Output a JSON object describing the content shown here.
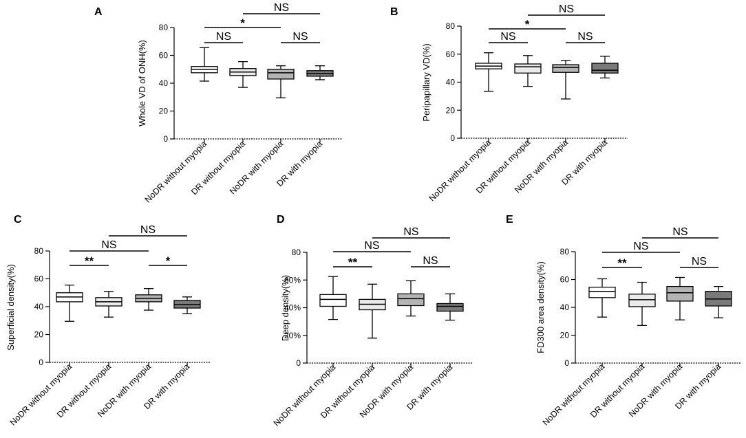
{
  "figure": {
    "categories": [
      "NoDR without myopia",
      "DR without myopia",
      "NoDR with myopia",
      "DR with myopia"
    ],
    "box_colors": [
      "#ffffff",
      "#ebebeb",
      "#b4b4b4",
      "#7a7a7a"
    ]
  },
  "chart_data": [
    {
      "id": "A",
      "type": "box",
      "letter": "A",
      "ylabel": "Whole VD of ONH(%)",
      "ylim": [
        0,
        80
      ],
      "yticks": [
        0,
        20,
        40,
        60,
        80
      ],
      "yticklabels": [
        "0",
        "20",
        "40",
        "60",
        "80"
      ],
      "boxes": [
        {
          "min": 41.5,
          "q1": 47.5,
          "median": 50.0,
          "q3": 52.0,
          "max": 65.5
        },
        {
          "min": 37.0,
          "q1": 45.5,
          "median": 48.0,
          "q3": 50.5,
          "max": 55.5
        },
        {
          "min": 29.5,
          "q1": 43.0,
          "median": 47.5,
          "q3": 50.0,
          "max": 52.5
        },
        {
          "min": 42.5,
          "q1": 45.0,
          "median": 47.0,
          "q3": 49.0,
          "max": 52.5
        }
      ],
      "comparisons": [
        {
          "from": 1,
          "to": 3,
          "label": "NS",
          "level": 3
        },
        {
          "from": 0,
          "to": 2,
          "label": "*",
          "level": 2
        },
        {
          "from": 0,
          "to": 1,
          "label": "NS",
          "level": 1
        },
        {
          "from": 2,
          "to": 3,
          "label": "NS",
          "level": 1
        }
      ]
    },
    {
      "id": "B",
      "type": "box",
      "letter": "B",
      "ylabel": "Peripapillary VD(%)",
      "ylim": [
        0,
        80
      ],
      "yticks": [
        0,
        20,
        40,
        60,
        80
      ],
      "yticklabels": [
        "0",
        "20",
        "40",
        "60",
        "80"
      ],
      "boxes": [
        {
          "min": 33.5,
          "q1": 49.5,
          "median": 51.5,
          "q3": 53.5,
          "max": 61.0
        },
        {
          "min": 37.0,
          "q1": 46.5,
          "median": 51.0,
          "q3": 53.0,
          "max": 59.0
        },
        {
          "min": 28.0,
          "q1": 47.0,
          "median": 50.5,
          "q3": 52.5,
          "max": 55.5
        },
        {
          "min": 43.0,
          "q1": 46.5,
          "median": 48.5,
          "q3": 53.5,
          "max": 58.5
        }
      ],
      "comparisons": [
        {
          "from": 1,
          "to": 3,
          "label": "NS",
          "level": 3
        },
        {
          "from": 0,
          "to": 2,
          "label": "*",
          "level": 2
        },
        {
          "from": 0,
          "to": 1,
          "label": "NS",
          "level": 1
        },
        {
          "from": 2,
          "to": 3,
          "label": "NS",
          "level": 1
        }
      ]
    },
    {
      "id": "C",
      "type": "box",
      "letter": "C",
      "ylabel": "Superficial density(%)",
      "ylim": [
        0,
        80
      ],
      "yticks": [
        0,
        20,
        40,
        60,
        80
      ],
      "yticklabels": [
        "0",
        "20",
        "40",
        "60",
        "80"
      ],
      "boxes": [
        {
          "min": 29.5,
          "q1": 43.5,
          "median": 47.0,
          "q3": 50.0,
          "max": 55.5
        },
        {
          "min": 32.5,
          "q1": 40.5,
          "median": 43.5,
          "q3": 46.5,
          "max": 51.0
        },
        {
          "min": 37.5,
          "q1": 43.5,
          "median": 46.0,
          "q3": 48.5,
          "max": 53.0
        },
        {
          "min": 35.0,
          "q1": 39.0,
          "median": 41.5,
          "q3": 44.5,
          "max": 47.0
        }
      ],
      "comparisons": [
        {
          "from": 1,
          "to": 3,
          "label": "NS",
          "level": 3
        },
        {
          "from": 0,
          "to": 2,
          "label": "NS",
          "level": 2
        },
        {
          "from": 0,
          "to": 1,
          "label": "**",
          "level": 1
        },
        {
          "from": 2,
          "to": 3,
          "label": "*",
          "level": 1
        }
      ]
    },
    {
      "id": "D",
      "type": "box",
      "letter": "D",
      "ylabel": "Deep density(%)",
      "ylim": [
        0,
        80
      ],
      "yticks": [
        0,
        20,
        40,
        60,
        80
      ],
      "yticklabels": [
        "0",
        "20%",
        "40%",
        "60%",
        "80"
      ],
      "boxes": [
        {
          "min": 31.5,
          "q1": 41.0,
          "median": 46.0,
          "q3": 49.5,
          "max": 62.5
        },
        {
          "min": 18.0,
          "q1": 38.5,
          "median": 42.5,
          "q3": 46.0,
          "max": 57.0
        },
        {
          "min": 34.0,
          "q1": 41.5,
          "median": 46.5,
          "q3": 50.0,
          "max": 59.5
        },
        {
          "min": 31.0,
          "q1": 37.5,
          "median": 41.0,
          "q3": 43.0,
          "max": 50.0
        }
      ],
      "comparisons": [
        {
          "from": 1,
          "to": 3,
          "label": "NS",
          "level": 3
        },
        {
          "from": 0,
          "to": 2,
          "label": "NS",
          "level": 2
        },
        {
          "from": 0,
          "to": 1,
          "label": "**",
          "level": 1
        },
        {
          "from": 2,
          "to": 3,
          "label": "NS",
          "level": 1
        }
      ]
    },
    {
      "id": "E",
      "type": "box",
      "letter": "E",
      "ylabel": "FD300 area density(%)",
      "ylim": [
        0,
        80
      ],
      "yticks": [
        0,
        20,
        40,
        60,
        80
      ],
      "yticklabels": [
        "0",
        "20",
        "40",
        "60",
        "80"
      ],
      "boxes": [
        {
          "min": 33.0,
          "q1": 47.0,
          "median": 51.5,
          "q3": 54.5,
          "max": 60.5
        },
        {
          "min": 27.0,
          "q1": 40.5,
          "median": 45.5,
          "q3": 49.5,
          "max": 58.0
        },
        {
          "min": 31.0,
          "q1": 44.5,
          "median": 50.5,
          "q3": 55.0,
          "max": 61.5
        },
        {
          "min": 32.5,
          "q1": 41.0,
          "median": 46.0,
          "q3": 51.5,
          "max": 55.0
        }
      ],
      "comparisons": [
        {
          "from": 1,
          "to": 3,
          "label": "NS",
          "level": 3
        },
        {
          "from": 0,
          "to": 2,
          "label": "NS",
          "level": 2
        },
        {
          "from": 0,
          "to": 1,
          "label": "**",
          "level": 1
        },
        {
          "from": 2,
          "to": 3,
          "label": "NS",
          "level": 1
        }
      ]
    }
  ]
}
